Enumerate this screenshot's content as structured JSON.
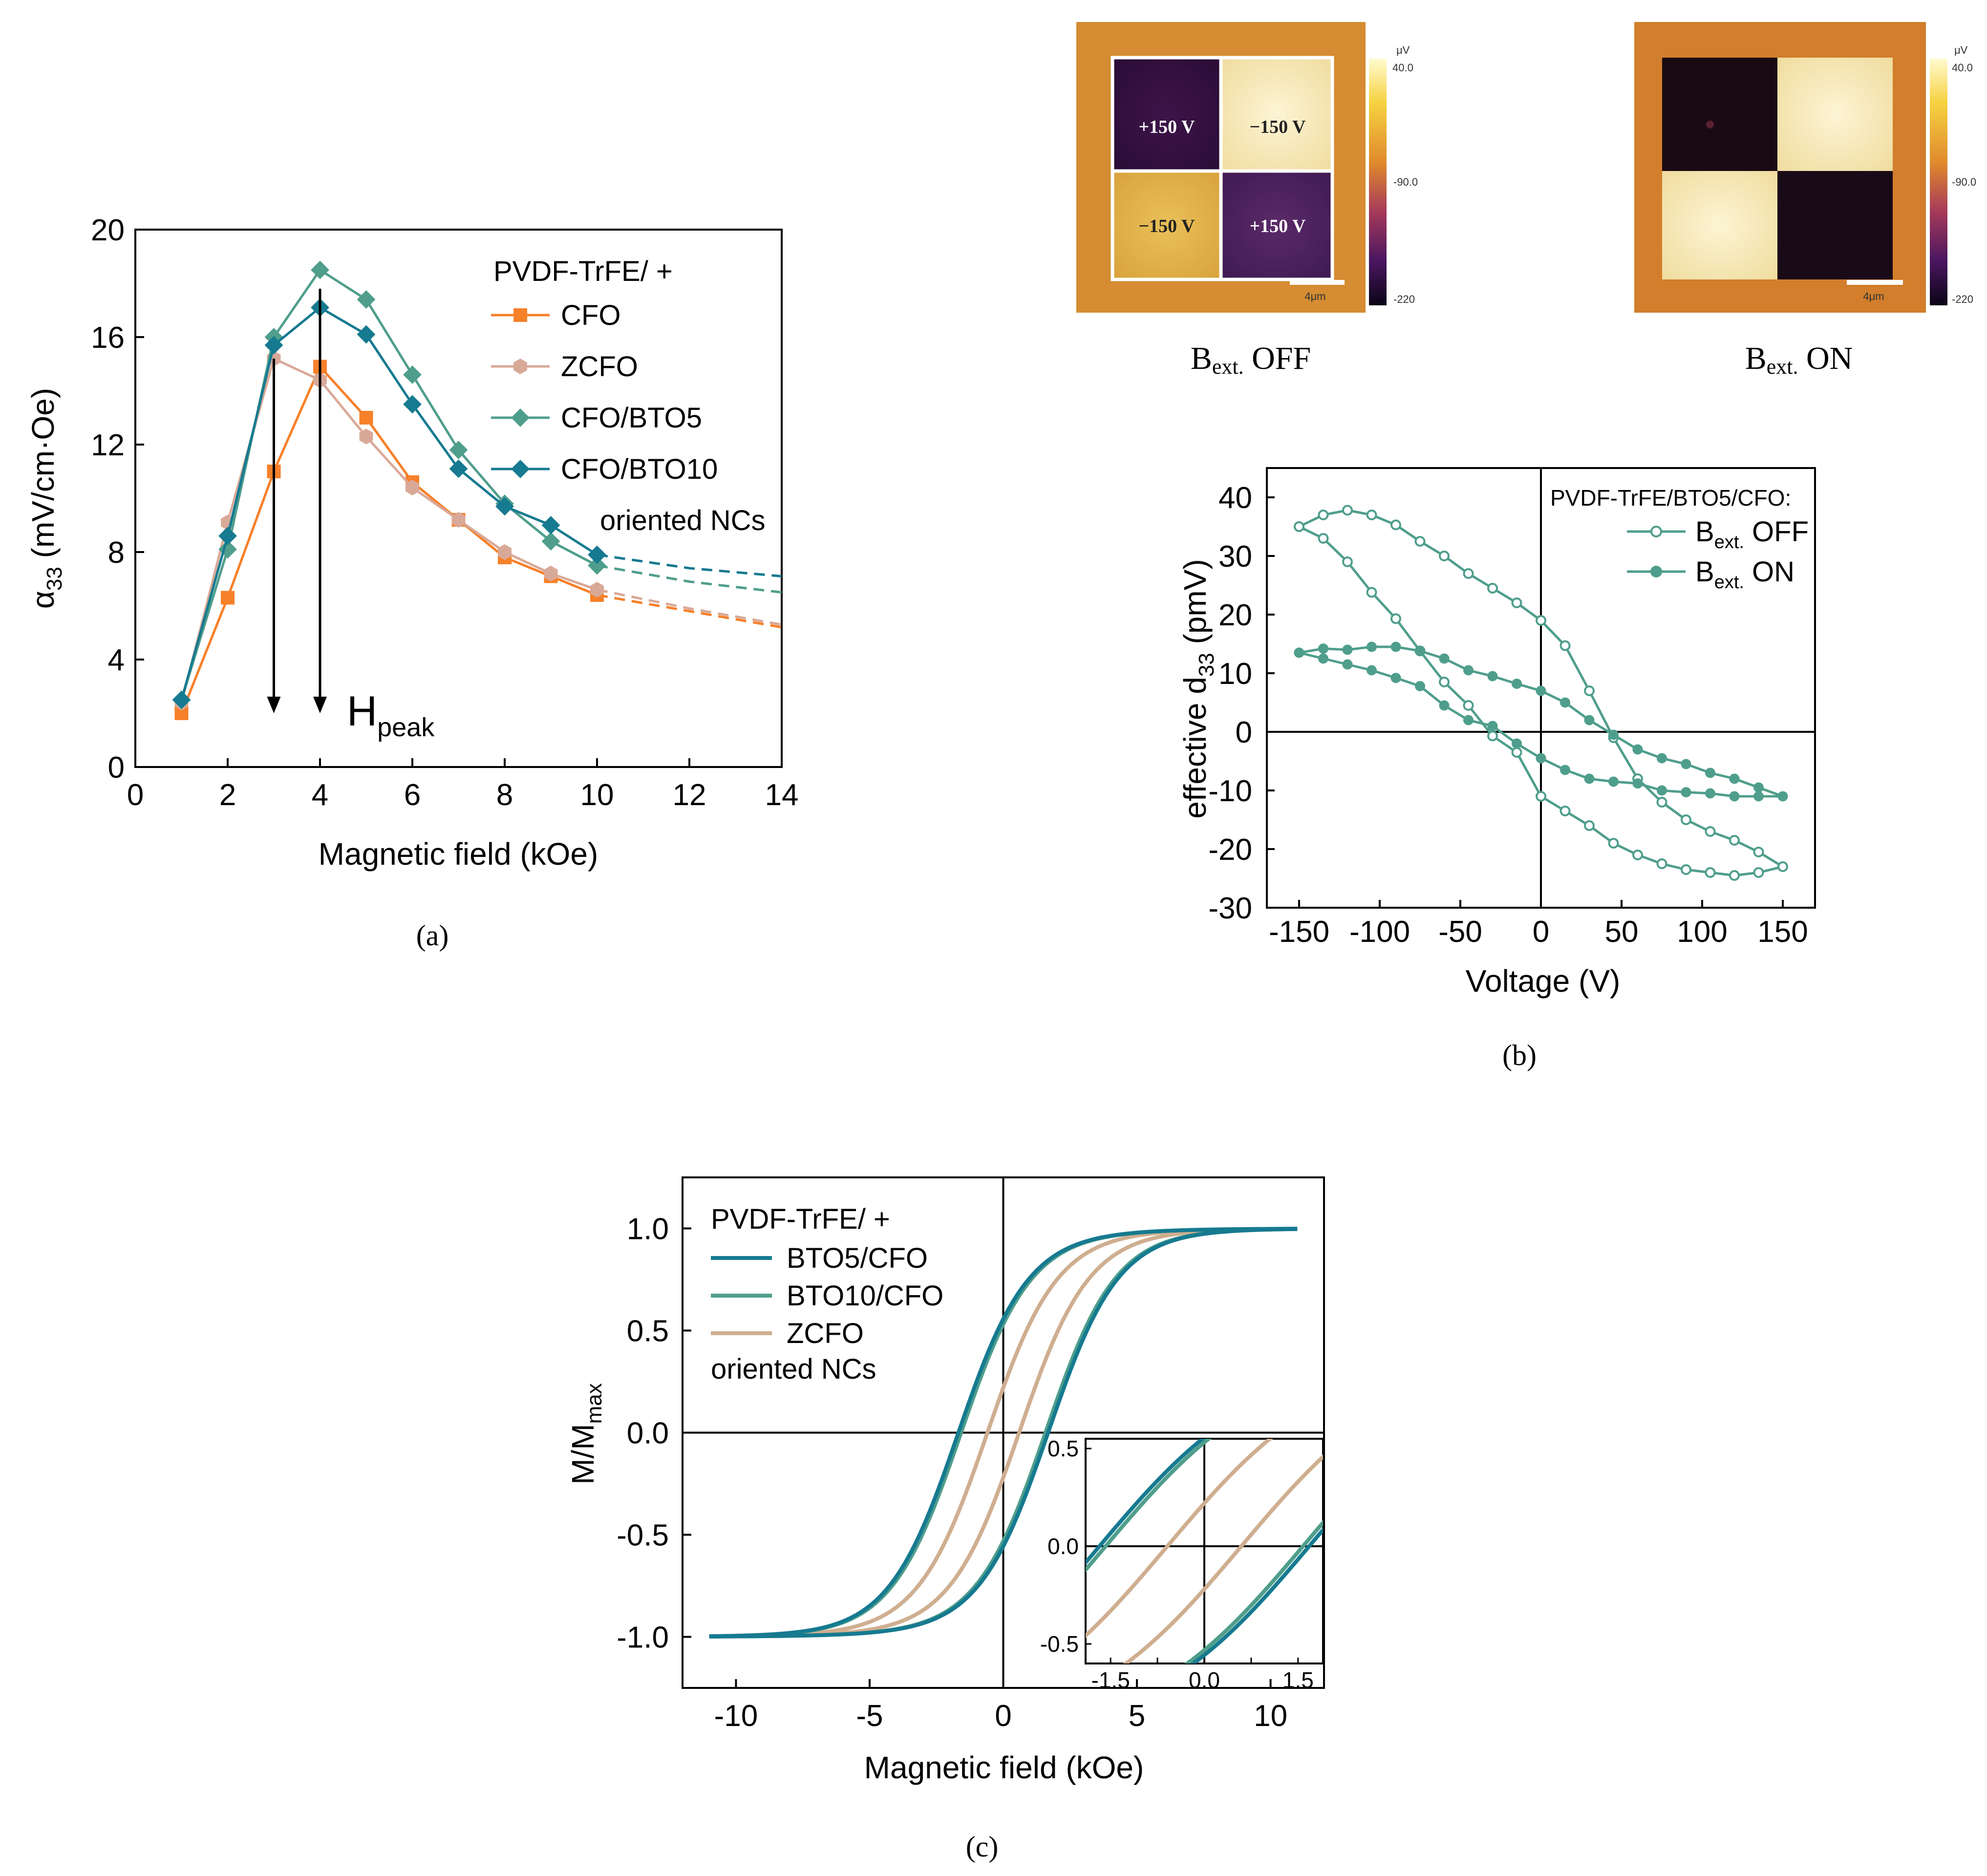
{
  "panel_a": {
    "caption": "(a)",
    "legend_title": "PVDF-TrFE/ +",
    "legend_note": "oriented NCs",
    "annotation": "H",
    "annotation_sub": "peak",
    "ylabel_main": "α",
    "ylabel_sub": "33",
    "ylabel_rest": " (mV/cm·Oe)"
  },
  "panel_b": {
    "caption": "(b)",
    "legend_title": "PVDF-TrFE/BTO5/CFO:",
    "legend_off_main": "B",
    "legend_off_sub": "ext.",
    "legend_off_rest": " OFF",
    "legend_on_main": "B",
    "legend_on_sub": "ext.",
    "legend_on_rest": " ON",
    "ylabel_main": "effective d",
    "ylabel_sub": "33",
    "ylabel_rest": " (pmV)",
    "map_off": {
      "title_main": "B",
      "title_sub": "ext.",
      "title_rest": " OFF",
      "labels": [
        "+150 V",
        "−150 V",
        "−150 V",
        "+150 V"
      ],
      "scale": "4μm",
      "cbar_unit": "μV",
      "cbar_top": "40.0",
      "cbar_mid": "-90.0",
      "cbar_bot": "-220"
    },
    "map_on": {
      "title_main": "B",
      "title_sub": "ext.",
      "title_rest": " ON",
      "scale": "4μm",
      "cbar_unit": "μV",
      "cbar_top": "40.0",
      "cbar_mid": "-90.0",
      "cbar_bot": "-220"
    }
  },
  "panel_c": {
    "caption": "(c)",
    "legend_title": "PVDF-TrFE/ +",
    "legend_note": "oriented NCs",
    "ylabel_main": "M/M",
    "ylabel_sub": "max"
  },
  "colors": {
    "cfo": "#f7802a",
    "zcfo_a": "#d9a998",
    "bto5": "#4f9e8c",
    "bto10": "#167a90",
    "zcfo_c": "#cfae90",
    "b_curve": "#4f9e8c"
  },
  "chart_data": [
    {
      "id": "a",
      "type": "line",
      "title": "",
      "xlabel": "Magnetic field (kOe)",
      "ylabel": "α33 (mV/cm·Oe)",
      "xlim": [
        0,
        14
      ],
      "ylim": [
        0,
        20
      ],
      "xticks": [
        0,
        2,
        4,
        6,
        8,
        10,
        12,
        14
      ],
      "yticks": [
        0,
        4,
        8,
        12,
        16,
        20
      ],
      "x": [
        1,
        2,
        3,
        4,
        5,
        6,
        7,
        8,
        9,
        10
      ],
      "series": [
        {
          "name": "CFO",
          "marker": "square",
          "color": "#f7802a",
          "values": [
            2.0,
            6.3,
            11.0,
            14.9,
            13.0,
            10.6,
            9.2,
            7.8,
            7.1,
            6.4
          ],
          "extrapolation": [
            [
              10,
              6.4
            ],
            [
              12,
              5.8
            ],
            [
              14,
              5.2
            ]
          ]
        },
        {
          "name": "ZCFO",
          "marker": "hexagon",
          "color": "#d9a998",
          "values": [
            2.4,
            9.1,
            15.2,
            14.4,
            12.3,
            10.4,
            9.2,
            8.0,
            7.2,
            6.6
          ],
          "extrapolation": [
            [
              10,
              6.6
            ],
            [
              12,
              5.9
            ],
            [
              14,
              5.3
            ]
          ]
        },
        {
          "name": "CFO/BTO5",
          "marker": "diamond",
          "color": "#4f9e8c",
          "values": [
            2.5,
            8.1,
            16.0,
            18.5,
            17.4,
            14.6,
            11.8,
            9.8,
            8.4,
            7.5
          ],
          "extrapolation": [
            [
              10,
              7.5
            ],
            [
              12,
              6.9
            ],
            [
              14,
              6.5
            ]
          ]
        },
        {
          "name": "CFO/BTO10",
          "marker": "diamond",
          "color": "#167a90",
          "values": [
            2.5,
            8.6,
            15.7,
            17.1,
            16.1,
            13.5,
            11.1,
            9.7,
            9.0,
            7.9
          ],
          "extrapolation": [
            [
              10,
              7.9
            ],
            [
              12,
              7.4
            ],
            [
              14,
              7.1
            ]
          ]
        }
      ],
      "arrows": [
        {
          "x": 3,
          "from": 15.2,
          "to": 2.0
        },
        {
          "x": 4,
          "from": 17.8,
          "to": 2.0
        }
      ]
    },
    {
      "id": "b",
      "type": "line",
      "title": "",
      "xlabel": "Voltage (V)",
      "ylabel": "effective d33 (pmV)",
      "xlim": [
        -170,
        170
      ],
      "ylim": [
        -30,
        45
      ],
      "xticks": [
        -150,
        -100,
        -50,
        0,
        50,
        100,
        150
      ],
      "yticks": [
        -30,
        -20,
        -10,
        0,
        10,
        20,
        30,
        40
      ],
      "series": [
        {
          "name": "Bext. OFF",
          "marker": "open-circle",
          "color": "#4f9e8c",
          "x": [
            -150,
            -135,
            -120,
            -105,
            -90,
            -75,
            -60,
            -45,
            -30,
            -15,
            0,
            15,
            30,
            45,
            60,
            75,
            90,
            105,
            120,
            135,
            150,
            135,
            120,
            105,
            90,
            75,
            60,
            45,
            30,
            15,
            0,
            -15,
            -30,
            -45,
            -60,
            -75,
            -90,
            -105,
            -120,
            -135,
            -150
          ],
          "y": [
            35,
            37,
            37.8,
            37,
            35.3,
            32.5,
            30,
            27,
            24.5,
            22,
            19,
            14.7,
            7,
            -1,
            -8,
            -12,
            -15,
            -17,
            -18.5,
            -20.5,
            -23,
            -24,
            -24.5,
            -24,
            -23.5,
            -22.5,
            -21,
            -19,
            -16,
            -13.5,
            -11,
            -3.5,
            -0.7,
            4.5,
            8.5,
            13.8,
            19.3,
            23.8,
            29,
            33,
            35
          ]
        },
        {
          "name": "Bext. ON",
          "marker": "filled-circle",
          "color": "#4f9e8c",
          "x": [
            -150,
            -135,
            -120,
            -105,
            -90,
            -75,
            -60,
            -45,
            -30,
            -15,
            0,
            15,
            30,
            45,
            60,
            75,
            90,
            105,
            120,
            135,
            150,
            135,
            120,
            105,
            90,
            75,
            60,
            45,
            30,
            15,
            0,
            -15,
            -30,
            -45,
            -60,
            -75,
            -90,
            -105,
            -120,
            -135,
            -150
          ],
          "y": [
            13.5,
            14.2,
            14.0,
            14.5,
            14.5,
            13.8,
            12.5,
            10.5,
            9.5,
            8.2,
            7.0,
            5.0,
            2.0,
            -0.5,
            -3.0,
            -4.5,
            -5.5,
            -7.0,
            -8.0,
            -9.5,
            -11,
            -11,
            -11,
            -10.5,
            -10.3,
            -10,
            -8.8,
            -8.5,
            -8.0,
            -6.5,
            -4.5,
            -2.0,
            1.0,
            2.0,
            4.5,
            7.8,
            9.2,
            10.5,
            11.5,
            12.5,
            13.5
          ]
        }
      ]
    },
    {
      "id": "c",
      "type": "line",
      "title": "",
      "xlabel": "Magnetic field (kOe)",
      "ylabel": "M/Mmax",
      "xlim": [
        -12,
        12
      ],
      "ylim": [
        -1.25,
        1.25
      ],
      "xticks": [
        -10,
        -5,
        0,
        5,
        10
      ],
      "yticks": [
        -1.0,
        -0.5,
        0.0,
        0.5,
        1.0
      ],
      "series": [
        {
          "name": "BTO5/CFO",
          "color": "#167a90",
          "coercive_field_kOe": 1.7,
          "saturation_field_kOe": 11
        },
        {
          "name": "BTO10/CFO",
          "color": "#4f9e8c",
          "coercive_field_kOe": 1.6,
          "saturation_field_kOe": 11
        },
        {
          "name": "ZCFO",
          "color": "#cfae90",
          "coercive_field_kOe": 0.6,
          "saturation_field_kOe": 11
        }
      ],
      "inset": {
        "xlim": [
          -1.9,
          1.9
        ],
        "ylim": [
          -0.6,
          0.55
        ],
        "xticks": [
          -1.5,
          -0.75,
          0.0,
          0.75,
          1.5
        ],
        "xticklabels": [
          "-1.5",
          "",
          "0.0",
          "",
          "1.5"
        ],
        "yticks": [
          -0.5,
          0.0,
          0.5
        ]
      }
    }
  ]
}
